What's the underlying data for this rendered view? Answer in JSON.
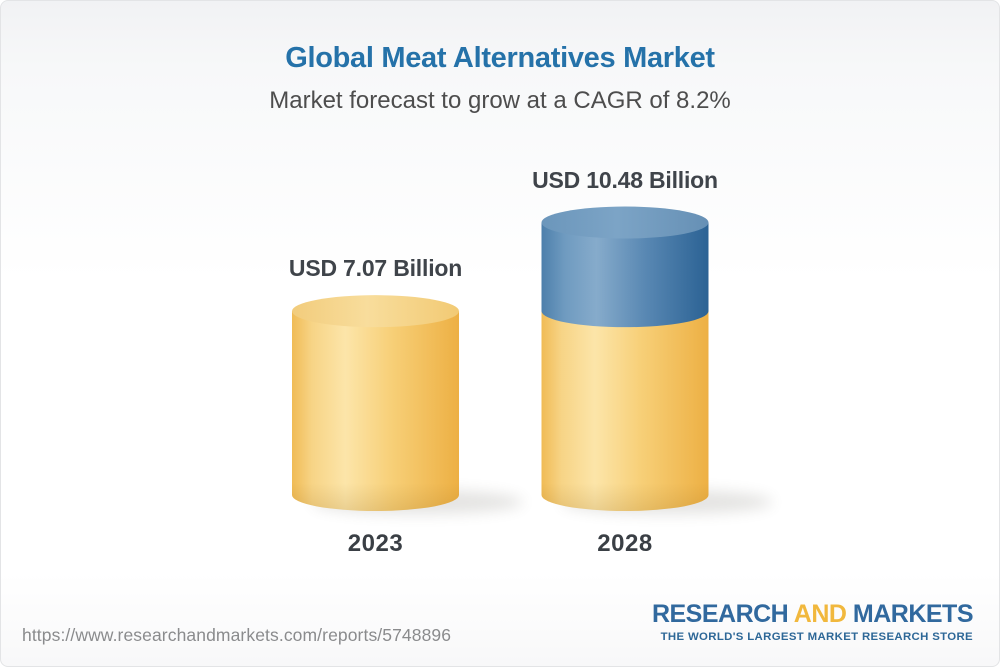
{
  "header": {
    "title": "Global Meat Alternatives Market",
    "subtitle": "Market forecast to grow at a CAGR of 8.2%"
  },
  "chart_data": {
    "type": "bar",
    "variant": "3d-cylinder",
    "categories": [
      "2023",
      "2028"
    ],
    "values": [
      7.07,
      10.48
    ],
    "value_labels": [
      "USD 7.07 Billion",
      "USD 10.48 Billion"
    ],
    "unit": "USD Billion",
    "cagr_percent": 8.2,
    "series": [
      {
        "name": "current-market",
        "color": "#f5c35b"
      },
      {
        "name": "forecast-growth",
        "color": "#4c7fac"
      }
    ],
    "legend": "none",
    "grid": false,
    "axes": "none"
  },
  "footer": {
    "url": "https://www.researchandmarkets.com/reports/5748896",
    "logo": {
      "word1": "RESEARCH ",
      "word2": "AND",
      "word3": " MARKETS",
      "tagline": "THE WORLD'S LARGEST MARKET RESEARCH STORE"
    }
  },
  "colors": {
    "title_blue": "#2572a9",
    "subtitle_gray": "#4d4d4d",
    "bar_yellow": "#f5c35b",
    "bar_blue": "#4c7fac",
    "logo_blue": "#31699e",
    "logo_gold": "#f1b83d",
    "url_gray": "#8a8b8d"
  }
}
